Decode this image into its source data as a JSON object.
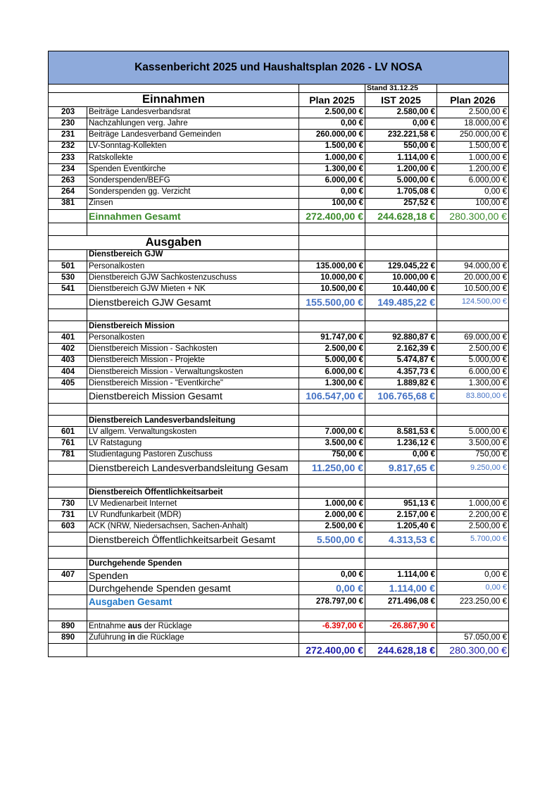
{
  "header": {
    "title": "Kassenbericht 2025 und Haushaltsplan 2026 - LV NOSA"
  },
  "table": {
    "rows": [
      [
        null,
        null,
        null,
        "Stand 31.12.25",
        null
      ],
      [
        null,
        "Einnahmen",
        "Plan 2025",
        "IST 2025",
        "Plan 2026"
      ],
      [
        "203",
        "Beiträge Landesverbandsrat",
        "2.500,00 €",
        "2.580,00 €",
        "2.500,00 €"
      ],
      [
        "230",
        "Nachzahlungen verg. Jahre",
        "0,00 €",
        "0,00 €",
        "18.000,00 €"
      ],
      [
        "231",
        "Beiträge Landesverband Gemeinden",
        "260.000,00 €",
        "232.221,58 €",
        "250.000,00 €"
      ],
      [
        "232",
        "LV-Sonntag-Kollekten",
        "1.500,00 €",
        "550,00 €",
        "1.500,00 €"
      ],
      [
        "233",
        "Ratskollekte",
        "1.000,00 €",
        "1.114,00 €",
        "1.000,00 €"
      ],
      [
        "234",
        "Spenden Eventkirche",
        "1.300,00 €",
        "1.200,00 €",
        "1.200,00 €"
      ],
      [
        "263",
        "Sonderspenden/BEFG",
        "6.000,00 €",
        "5.000,00 €",
        "6.000,00 €"
      ],
      [
        "264",
        "Sonderspenden gg. Verzicht",
        "0,00 €",
        "1.705,08 €",
        "0,00 €"
      ],
      [
        "381",
        "Zinsen",
        "100,00 €",
        "257,52 €",
        "100,00 €"
      ],
      [
        null,
        "Einnahmen Gesamt",
        "272.400,00 €",
        "244.628,18 €",
        "280.300,00 €"
      ],
      [
        null,
        null,
        null,
        null,
        null
      ],
      [
        null,
        "Ausgaben",
        null,
        null,
        null
      ],
      [
        null,
        "Dienstbereich GJW",
        null,
        null,
        null
      ],
      [
        "501",
        "Personalkosten",
        "135.000,00 €",
        "129.045,22 €",
        "94.000,00 €"
      ],
      [
        "530",
        "Dienstbereich GJW Sachkostenzuschuss",
        "10.000,00 €",
        "10.000,00 €",
        "20.000,00 €"
      ],
      [
        "541",
        "Dienstbereich GJW Mieten + NK",
        "10.500,00 €",
        "10.440,00 €",
        "10.500,00 €"
      ],
      [
        null,
        "Dienstbereich GJW Gesamt",
        "155.500,00 €",
        "149.485,22 €",
        "124.500,00 €"
      ],
      [
        null,
        null,
        null,
        null,
        null
      ],
      [
        null,
        "Dienstbereich Mission",
        null,
        null,
        null
      ],
      [
        "401",
        "Personalkosten",
        "91.747,00 €",
        "92.880,87 €",
        "69.000,00 €"
      ],
      [
        "402",
        "Dienstbereich Mission - Sachkosten",
        "2.500,00 €",
        "2.162,39 €",
        "2.500,00 €"
      ],
      [
        "403",
        "Dienstbereich Mission - Projekte",
        "5.000,00 €",
        "5.474,87 €",
        "5.000,00 €"
      ],
      [
        "404",
        "Dienstbereich Mission - Verwaltungskosten",
        "6.000,00 €",
        "4.357,73 €",
        "6.000,00 €"
      ],
      [
        "405",
        "Dienstbereich Mission  - \"Eventkirche\"",
        "1.300,00 €",
        "1.889,82 €",
        "1.300,00 €"
      ],
      [
        null,
        "Dienstbereich Mission Gesamt",
        "106.547,00 €",
        "106.765,68 €",
        "83.800,00 €"
      ],
      [
        null,
        null,
        null,
        null,
        null
      ],
      [
        null,
        "Dienstbereich Landesverbandsleitung",
        null,
        null,
        null
      ],
      [
        "601",
        "LV allgem. Verwaltungskosten",
        "7.000,00 €",
        "8.581,53 €",
        "5.000,00 €"
      ],
      [
        "761",
        "LV Ratstagung",
        "3.500,00 €",
        "1.236,12 €",
        "3.500,00 €"
      ],
      [
        "781",
        "Studientagung Pastoren Zuschuss",
        "750,00 €",
        "0,00 €",
        "750,00 €"
      ],
      [
        null,
        "Dienstbereich Landesverbandsleitung Gesam",
        "11.250,00 €",
        "9.817,65 €",
        "9.250,00 €"
      ],
      [
        null,
        null,
        null,
        null,
        null
      ],
      [
        null,
        "Dienstbereich Öffentlichkeitsarbeit",
        null,
        null,
        null
      ],
      [
        "730",
        "LV Medienarbeit Internet",
        "1.000,00 €",
        "951,13 €",
        "1.000,00 €"
      ],
      [
        "731",
        "LV Rundfunkarbeit (MDR)",
        "2.000,00 €",
        "2.157,00 €",
        "2.200,00 €"
      ],
      [
        "603",
        "ACK (NRW, Niedersachsen, Sachen-Anhalt)",
        "2.500,00 €",
        "1.205,40 €",
        "2.500,00 €"
      ],
      [
        null,
        "Dienstbereich Öffentlichkeitsarbeit Gesamt",
        "5.500,00 €",
        "4.313,53 €",
        "5.700,00 €"
      ],
      [
        null,
        null,
        null,
        null,
        null
      ],
      [
        null,
        "Durchgehende Spenden",
        null,
        null,
        null
      ],
      [
        "407",
        "Spenden",
        "0,00 €",
        "1.114,00 €",
        "0,00 €"
      ],
      [
        null,
        "Durchgehende Spenden gesamt",
        "0,00 €",
        "1.114,00 €",
        "0,00 €"
      ],
      [
        null,
        "Ausgaben Gesamt",
        "278.797,00 €",
        "271.496,08 €",
        "223.250,00 €"
      ],
      [
        null,
        null,
        null,
        null,
        null
      ],
      [
        "890",
        [
          "Entnahme ",
          "aus",
          " der Rücklage"
        ],
        "-6.397,00 €",
        "-26.867,90 €",
        null
      ],
      [
        "890",
        [
          "Zuführung ",
          "in",
          " die Rücklage"
        ],
        null,
        null,
        "57.050,00 €"
      ],
      [
        null,
        null,
        "272.400,00 €",
        "244.628,18 €",
        "280.300,00 €"
      ]
    ]
  }
}
